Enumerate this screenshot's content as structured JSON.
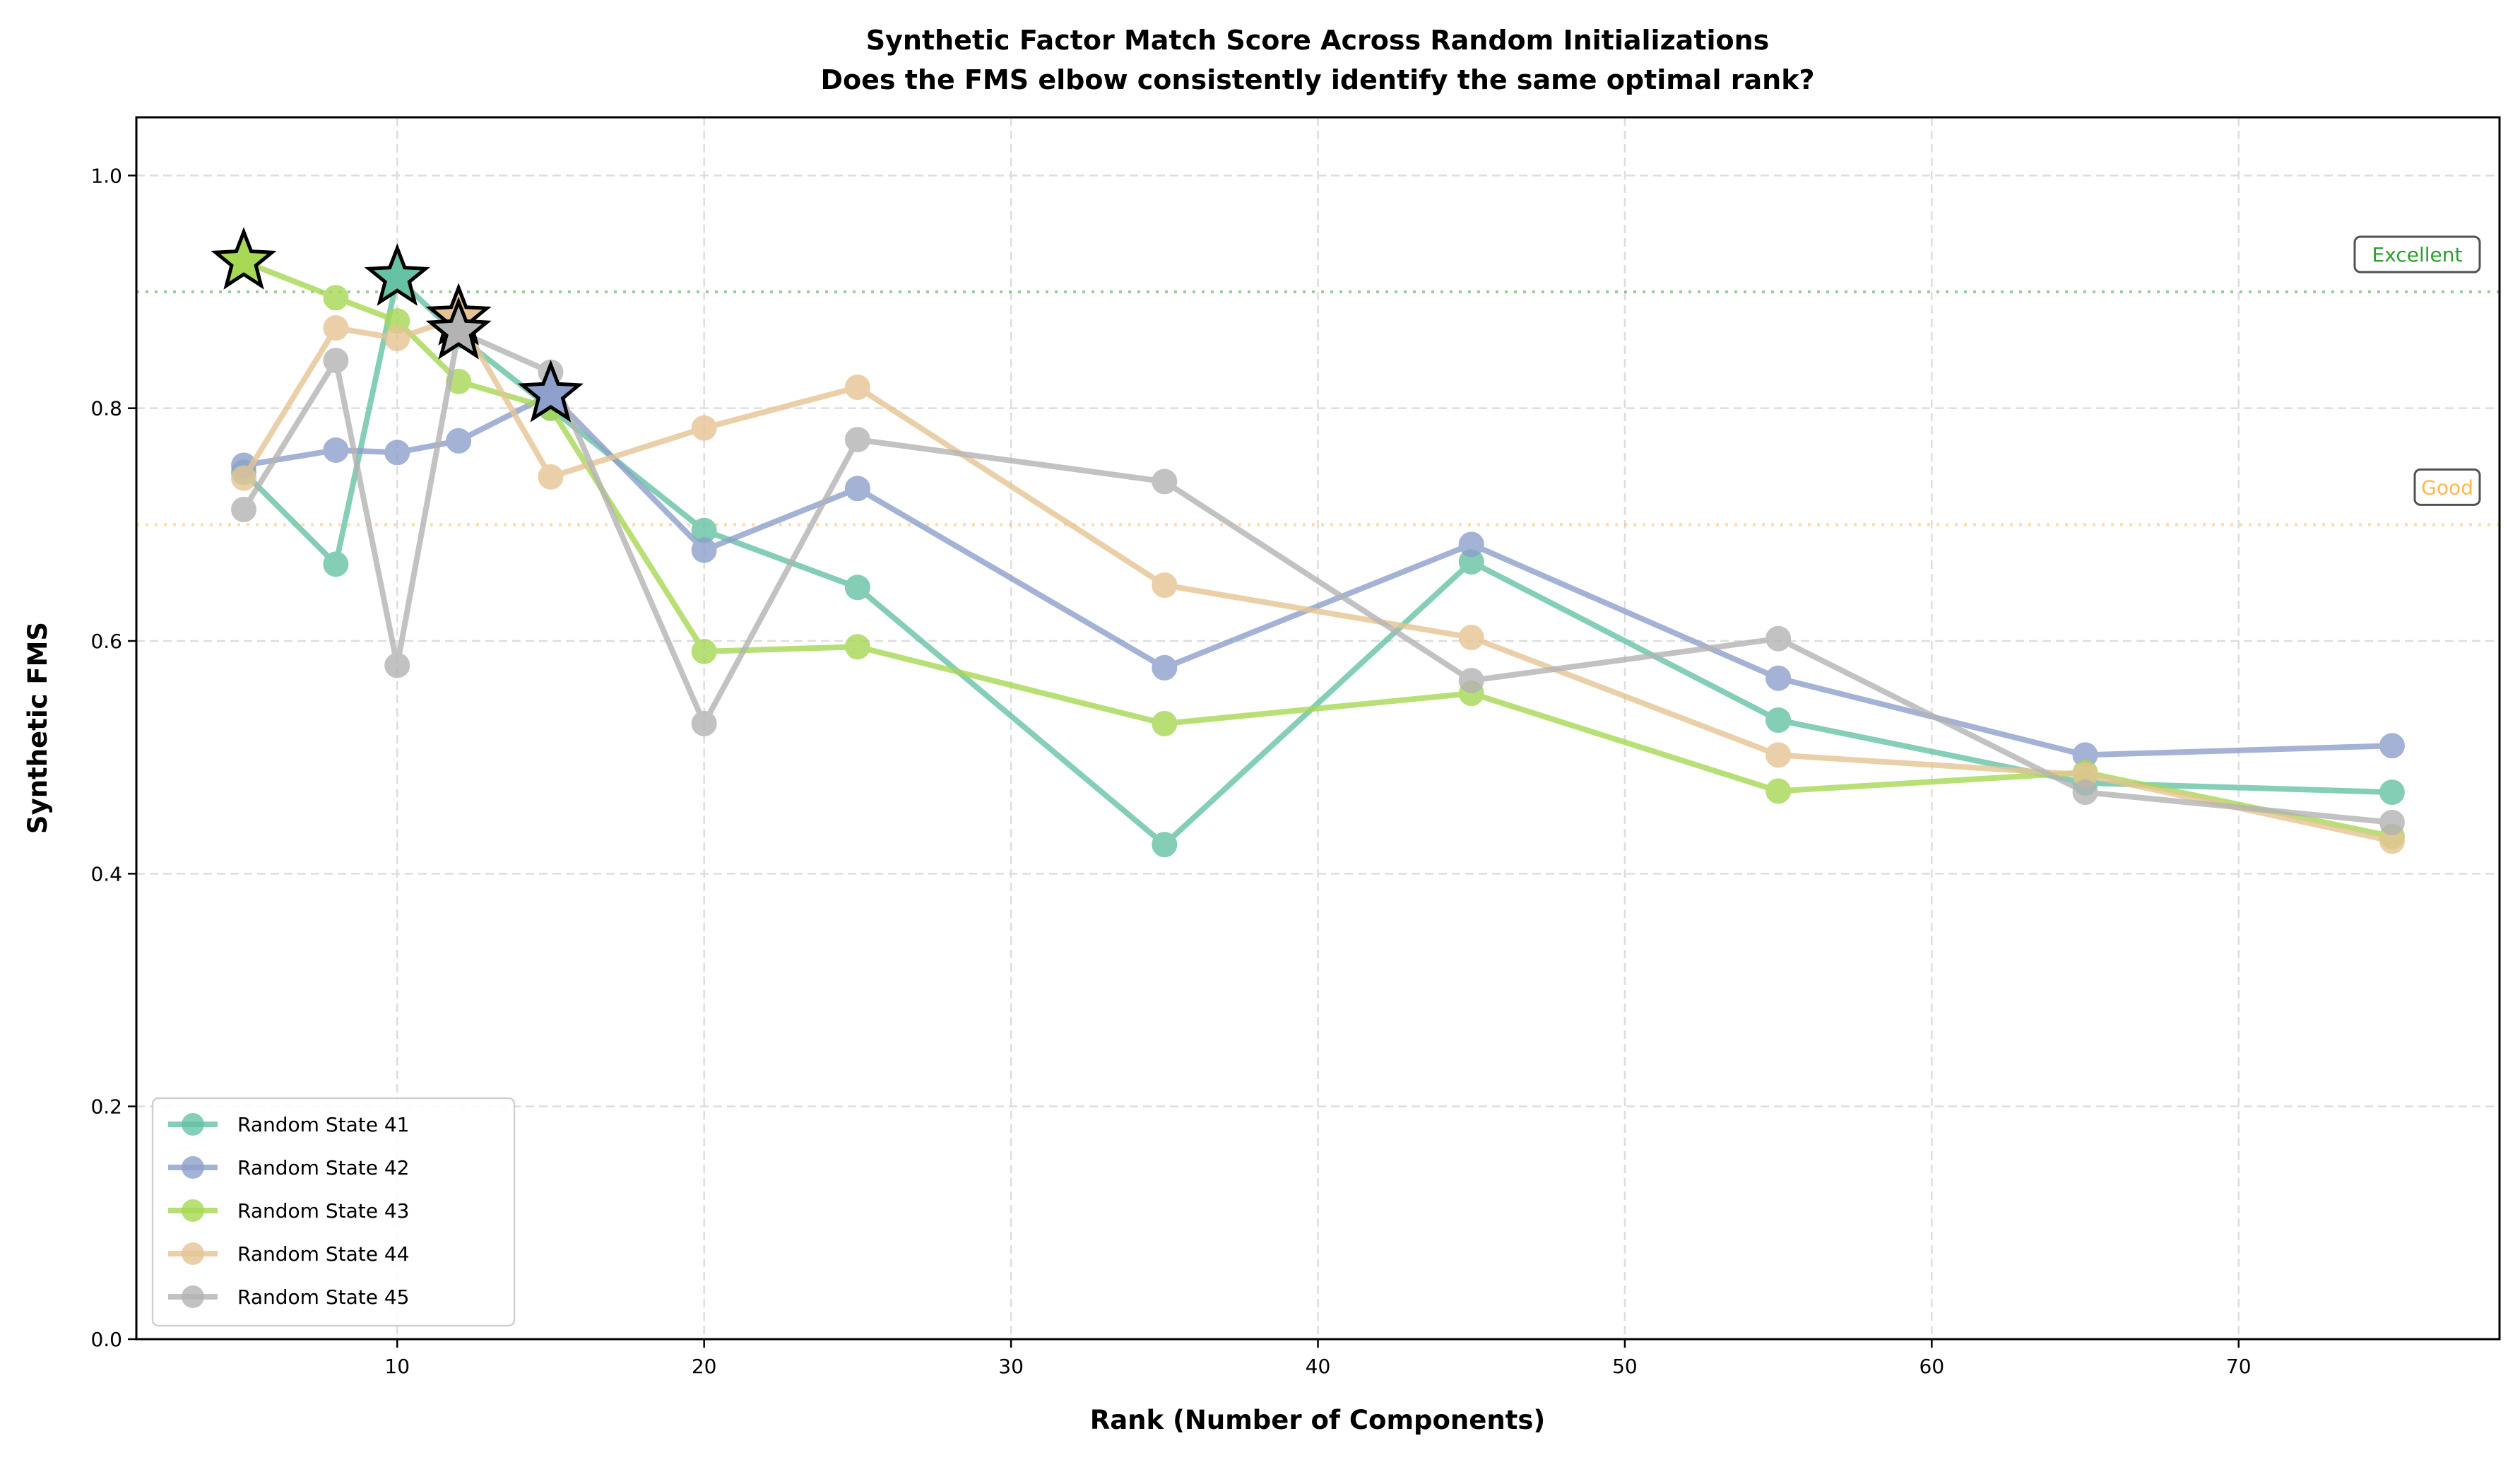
{
  "chart_data": {
    "type": "line",
    "title": "Synthetic Factor Match Score Across Random Initializations",
    "subtitle": "Does the FMS elbow consistently identify the same optimal rank?",
    "xlabel": "Rank (Number of Components)",
    "ylabel": "Synthetic FMS",
    "xlim": [
      1.5,
      78.5
    ],
    "ylim": [
      0,
      1.05
    ],
    "xticks": [
      10,
      20,
      30,
      40,
      50,
      60,
      70
    ],
    "yticks": [
      0.0,
      0.2,
      0.4,
      0.6,
      0.8,
      1.0
    ],
    "ytick_labels": [
      "0.0",
      "0.2",
      "0.4",
      "0.6",
      "0.8",
      "1.0"
    ],
    "grid": true,
    "legend_position": "lower-left",
    "x": [
      5,
      8,
      10,
      12,
      15,
      20,
      25,
      35,
      45,
      55,
      65,
      75
    ],
    "series": [
      {
        "name": "Random State 41",
        "color": "#66c2a5",
        "best_rank": 10,
        "values": [
          0.745,
          0.666,
          0.912,
          0.862,
          0.8,
          0.695,
          0.646,
          0.425,
          0.668,
          0.532,
          0.478,
          0.47
        ]
      },
      {
        "name": "Random State 42",
        "color": "#8da0cb",
        "best_rank": 15,
        "values": [
          0.751,
          0.764,
          0.762,
          0.772,
          0.812,
          0.678,
          0.731,
          0.577,
          0.683,
          0.568,
          0.502,
          0.51
        ]
      },
      {
        "name": "Random State 43",
        "color": "#a6d854",
        "best_rank": 5,
        "values": [
          0.926,
          0.895,
          0.875,
          0.823,
          0.8,
          0.591,
          0.595,
          0.529,
          0.555,
          0.471,
          0.487,
          0.432
        ]
      },
      {
        "name": "Random State 44",
        "color": "#e5c494",
        "best_rank": 12,
        "values": [
          0.74,
          0.869,
          0.86,
          0.878,
          0.741,
          0.783,
          0.818,
          0.648,
          0.603,
          0.502,
          0.485,
          0.428
        ]
      },
      {
        "name": "Random State 45",
        "color": "#b3b3b3",
        "best_rank": 12,
        "values": [
          0.713,
          0.841,
          0.579,
          0.866,
          0.831,
          0.529,
          0.773,
          0.737,
          0.566,
          0.602,
          0.47,
          0.444
        ]
      }
    ],
    "reference_lines": [
      {
        "label": "Excellent",
        "y": 0.9,
        "color": "#2ca02c"
      },
      {
        "label": "Good",
        "y": 0.7,
        "color": "#ffb84d"
      }
    ]
  }
}
